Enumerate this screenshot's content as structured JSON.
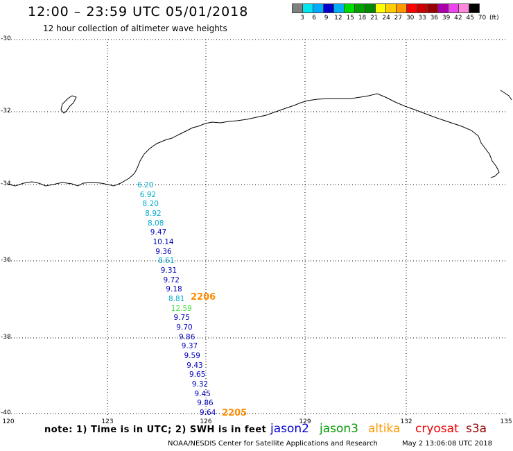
{
  "header": {
    "title": "12:00 – 23:59 UTC 05/01/2018",
    "subtitle": "12 hour collection of altimeter wave heights"
  },
  "colorbar": {
    "colors": [
      "#808080",
      "#00e5ee",
      "#00aaff",
      "#0000cc",
      "#00b0f0",
      "#00dd00",
      "#00a000",
      "#008800",
      "#ffff00",
      "#ffcc00",
      "#ff9900",
      "#ff0000",
      "#cc0000",
      "#990000",
      "#aa00aa",
      "#ee44ee",
      "#ff88dd",
      "#000000"
    ],
    "labels": [
      "3",
      "6",
      "9",
      "12",
      "15",
      "18",
      "21",
      "24",
      "27",
      "30",
      "33",
      "36",
      "39",
      "42",
      "45",
      "70",
      "(ft)"
    ]
  },
  "axes": {
    "lat_labels": [
      "-30",
      "-32",
      "-34",
      "-36",
      "-38",
      "-40"
    ],
    "lon_labels": [
      "120",
      "123",
      "126",
      "129",
      "132",
      "135"
    ]
  },
  "wave_heights": [
    {
      "v": "6.20",
      "c": "#00aacc"
    },
    {
      "v": "6.92",
      "c": "#00aacc"
    },
    {
      "v": "8.20",
      "c": "#00aacc"
    },
    {
      "v": "8.92",
      "c": "#00aacc"
    },
    {
      "v": "8.08",
      "c": "#00aacc"
    },
    {
      "v": "9.47",
      "c": "#0000bb"
    },
    {
      "v": "10.14",
      "c": "#0000bb"
    },
    {
      "v": "9.36",
      "c": "#0000bb"
    },
    {
      "v": "8.61",
      "c": "#00aacc"
    },
    {
      "v": "9.31",
      "c": "#0000bb"
    },
    {
      "v": "9.72",
      "c": "#0000bb"
    },
    {
      "v": "9.18",
      "c": "#0000bb"
    },
    {
      "v": "8.81",
      "c": "#00aacc"
    },
    {
      "v": "12.59",
      "c": "#44dd44"
    },
    {
      "v": "9.75",
      "c": "#0000bb"
    },
    {
      "v": "9.70",
      "c": "#0000bb"
    },
    {
      "v": "9.86",
      "c": "#0000bb"
    },
    {
      "v": "9.37",
      "c": "#0000bb"
    },
    {
      "v": "9.59",
      "c": "#0000bb"
    },
    {
      "v": "9.43",
      "c": "#0000bb"
    },
    {
      "v": "9.65",
      "c": "#0000bb"
    },
    {
      "v": "9.32",
      "c": "#0000bb"
    },
    {
      "v": "9.45",
      "c": "#0000bb"
    },
    {
      "v": "9.86",
      "c": "#0000bb"
    },
    {
      "v": "9.64",
      "c": "#0000bb"
    }
  ],
  "time_labels": [
    "2206",
    "2205"
  ],
  "footer": {
    "note": "note:  1) Time is in UTC;  2) SWH is in feet",
    "satellites": [
      {
        "name": "jason2",
        "color": "#0000cc"
      },
      {
        "name": "jason3",
        "color": "#009900"
      },
      {
        "name": "altika",
        "color": "#ff9900"
      },
      {
        "name": "cryosat",
        "color": "#ee0000"
      },
      {
        "name": "s3a",
        "color": "#990000"
      }
    ],
    "credit": "NOAA/NESDIS Center for Satellite Applications and Research",
    "timestamp": "May  2 13:06:08 UTC 2018"
  }
}
